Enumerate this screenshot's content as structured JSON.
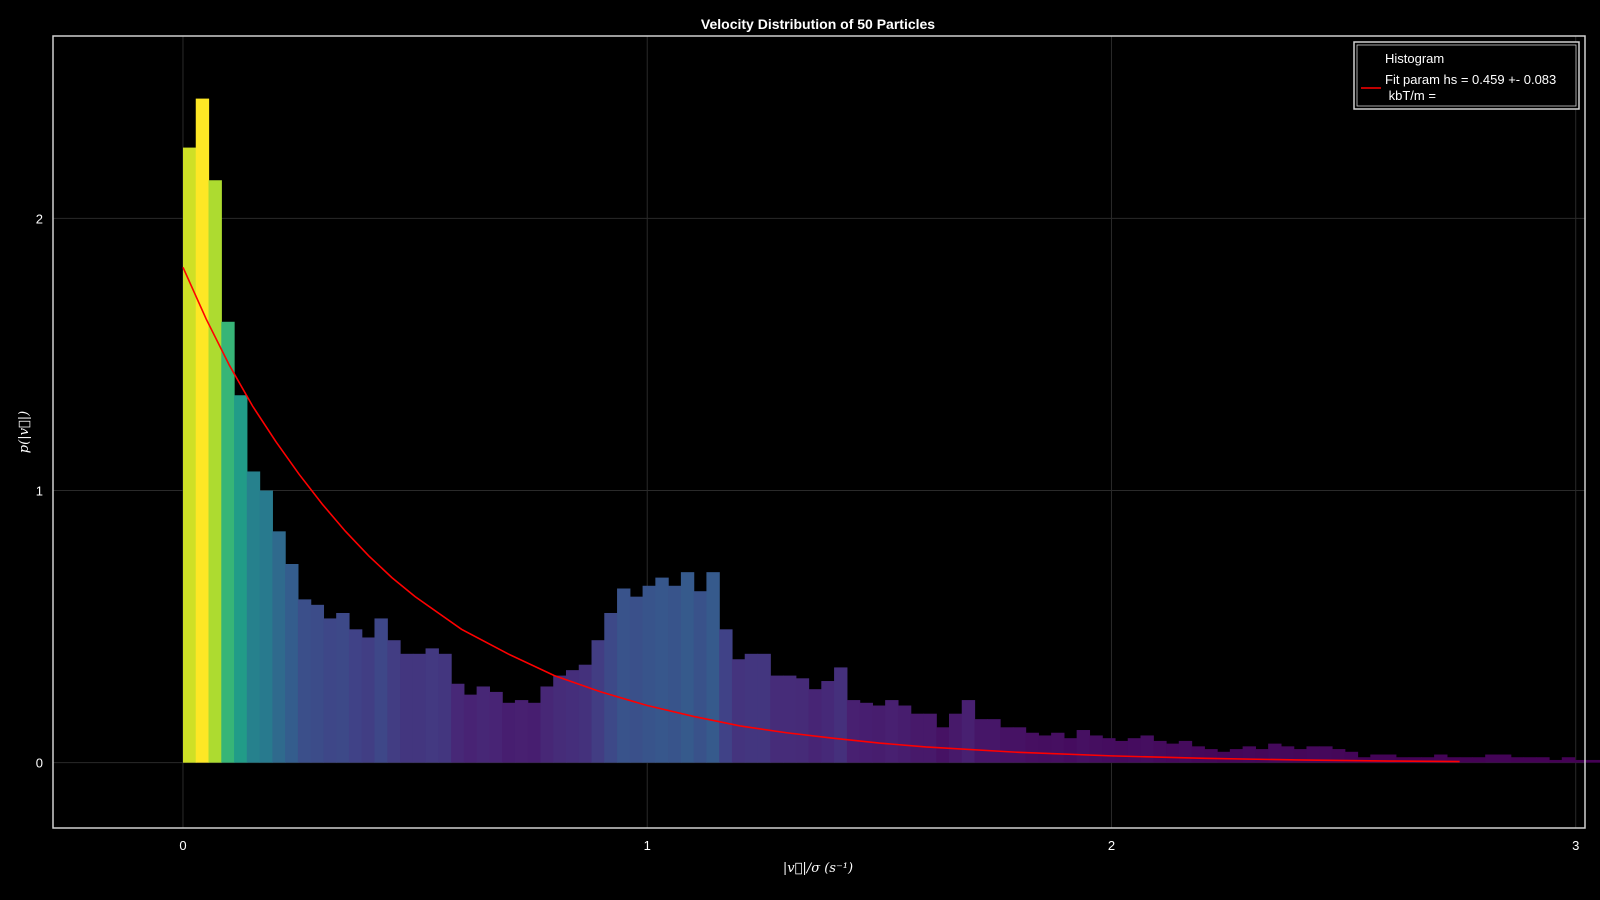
{
  "chart_data": {
    "type": "bar",
    "title": "Velocity Distribution of 50 Particles",
    "xlabel": "|v⃗|/σ (s⁻¹)",
    "ylabel": "p(|v⃗|)",
    "xlim": [
      -0.28,
      3.02
    ],
    "ylim": [
      -0.24,
      2.67
    ],
    "xticks": [
      "0",
      "1",
      "2",
      "3"
    ],
    "yticks": [
      "0",
      "1",
      "2"
    ],
    "grid": true,
    "legend_position": "top-right",
    "legend": {
      "histogram_label": "Histogram",
      "fit_label_line1": "Fit param hs = 0.459 +- 0.083",
      "fit_label_line2": " kbT/m ="
    },
    "colors": {
      "background": "#000000",
      "fit_line": "#ff0000",
      "frame": "#d0d0d0",
      "grid": "#2a2a2a"
    },
    "histogram": {
      "bin_start": 0.0,
      "bin_width": 0.0275,
      "values": [
        2.26,
        2.44,
        2.14,
        1.62,
        1.35,
        1.07,
        1.0,
        0.85,
        0.73,
        0.6,
        0.58,
        0.53,
        0.55,
        0.49,
        0.46,
        0.53,
        0.45,
        0.4,
        0.4,
        0.42,
        0.4,
        0.29,
        0.25,
        0.28,
        0.26,
        0.22,
        0.23,
        0.22,
        0.28,
        0.32,
        0.34,
        0.36,
        0.45,
        0.55,
        0.64,
        0.61,
        0.65,
        0.68,
        0.65,
        0.7,
        0.63,
        0.7,
        0.49,
        0.38,
        0.4,
        0.4,
        0.32,
        0.32,
        0.31,
        0.27,
        0.3,
        0.35,
        0.23,
        0.22,
        0.21,
        0.23,
        0.21,
        0.18,
        0.18,
        0.13,
        0.18,
        0.23,
        0.16,
        0.16,
        0.13,
        0.13,
        0.11,
        0.1,
        0.11,
        0.09,
        0.12,
        0.1,
        0.09,
        0.08,
        0.09,
        0.1,
        0.08,
        0.07,
        0.08,
        0.06,
        0.05,
        0.04,
        0.05,
        0.06,
        0.05,
        0.07,
        0.06,
        0.05,
        0.06,
        0.06,
        0.05,
        0.04,
        0.02,
        0.03,
        0.03,
        0.02,
        0.02,
        0.02,
        0.03,
        0.02,
        0.02,
        0.02,
        0.03,
        0.03,
        0.02,
        0.02,
        0.02,
        0.01,
        0.02,
        0.01,
        0.01,
        0.01,
        0.01,
        0.01,
        0.02
      ]
    },
    "fit_curve": {
      "name": "Fit param hs = 0.459 +- 0.083 kbT/m =",
      "x": [
        0.0,
        0.05,
        0.1,
        0.15,
        0.2,
        0.25,
        0.3,
        0.35,
        0.4,
        0.45,
        0.5,
        0.6,
        0.7,
        0.8,
        0.9,
        1.0,
        1.1,
        1.2,
        1.3,
        1.4,
        1.5,
        1.6,
        1.8,
        2.0,
        2.2,
        2.4,
        2.6,
        2.75
      ],
      "y": [
        1.82,
        1.63,
        1.46,
        1.31,
        1.18,
        1.06,
        0.95,
        0.85,
        0.76,
        0.68,
        0.61,
        0.49,
        0.4,
        0.32,
        0.26,
        0.21,
        0.17,
        0.135,
        0.11,
        0.09,
        0.072,
        0.058,
        0.038,
        0.025,
        0.016,
        0.01,
        0.006,
        0.004
      ]
    }
  }
}
